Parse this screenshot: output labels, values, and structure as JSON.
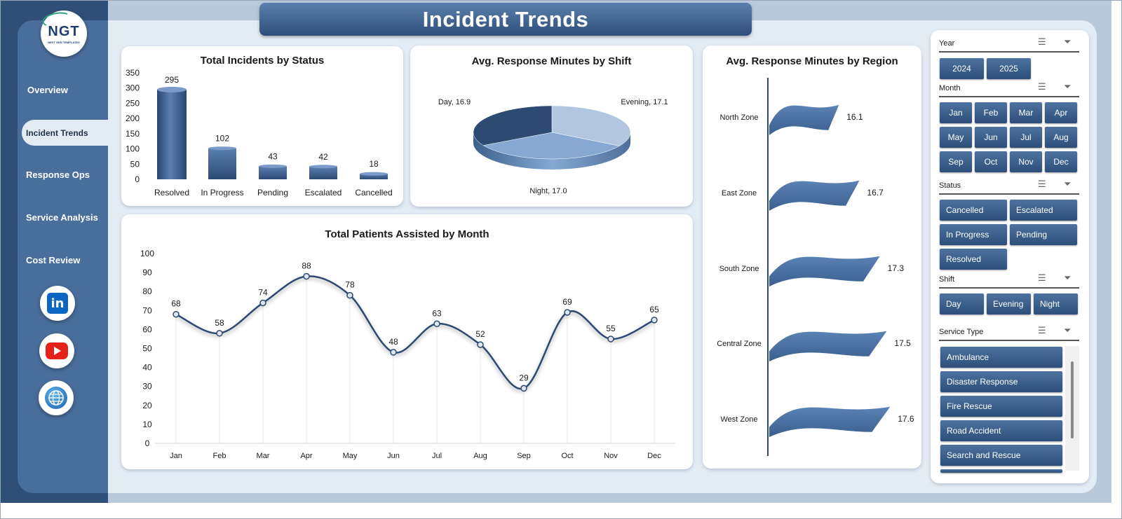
{
  "title": "Incident Trends",
  "logo": {
    "mark": "NGT",
    "sub": "NEXT GEN TEMPLATES"
  },
  "nav": [
    {
      "label": "Overview"
    },
    {
      "label": "Incident Trends",
      "active": true
    },
    {
      "label": "Response Ops"
    },
    {
      "label": "Service Analysis"
    },
    {
      "label": "Cost Review"
    }
  ],
  "social": {
    "linkedin": "in"
  },
  "charts": {
    "status": {
      "title": "Total Incidents by Status"
    },
    "shift": {
      "title": "Avg. Response Minutes by Shift"
    },
    "region": {
      "title": "Avg. Response Minutes by Region"
    },
    "month": {
      "title": "Total Patients Assisted by Month"
    }
  },
  "chart_data": [
    {
      "type": "bar",
      "title": "Total Incidents by Status",
      "categories": [
        "Resolved",
        "In Progress",
        "Pending",
        "Escalated",
        "Cancelled"
      ],
      "values": [
        295,
        102,
        43,
        42,
        18
      ],
      "yticks": [
        0,
        50,
        100,
        150,
        200,
        250,
        300,
        350
      ],
      "ylim": [
        0,
        350
      ],
      "grid": false
    },
    {
      "type": "pie",
      "title": "Avg. Response Minutes by Shift",
      "slices": [
        {
          "label": "Day",
          "value": 16.9,
          "text": "Day, 16.9"
        },
        {
          "label": "Evening",
          "value": 17.1,
          "text": "Evening, 17.1"
        },
        {
          "label": "Night",
          "value": 17.0,
          "text": "Night, 17.0"
        }
      ]
    },
    {
      "type": "bar",
      "orientation": "horizontal",
      "title": "Avg. Response Minutes by Region",
      "categories": [
        "North Zone",
        "East Zone",
        "South Zone",
        "Central Zone",
        "West Zone"
      ],
      "values": [
        16.1,
        16.7,
        17.3,
        17.5,
        17.6
      ],
      "labels": [
        "16.1",
        "16.7",
        "17.3",
        "17.5",
        "17.6"
      ]
    },
    {
      "type": "line",
      "title": "Total Patients Assisted by Month",
      "categories": [
        "Jan",
        "Feb",
        "Mar",
        "Apr",
        "May",
        "Jun",
        "Jul",
        "Aug",
        "Sep",
        "Oct",
        "Nov",
        "Dec"
      ],
      "values": [
        68,
        58,
        74,
        88,
        78,
        48,
        63,
        52,
        29,
        69,
        55,
        65
      ],
      "yticks": [
        0,
        10,
        20,
        30,
        40,
        50,
        60,
        70,
        80,
        90,
        100
      ],
      "ylim": [
        0,
        100
      ],
      "smooth": true
    }
  ],
  "slicers": {
    "year": {
      "header": "Year",
      "items": [
        "2024",
        "2025"
      ]
    },
    "month": {
      "header": "Month",
      "items": [
        "Jan",
        "Feb",
        "Mar",
        "Apr",
        "May",
        "Jun",
        "Jul",
        "Aug",
        "Sep",
        "Oct",
        "Nov",
        "Dec"
      ]
    },
    "status": {
      "header": "Status",
      "items": [
        "Cancelled",
        "Escalated",
        "In Progress",
        "Pending",
        "Resolved"
      ]
    },
    "shift": {
      "header": "Shift",
      "items": [
        "Day",
        "Evening",
        "Night"
      ]
    },
    "service": {
      "header": "Service Type",
      "items": [
        "Ambulance",
        "Disaster Response",
        "Fire Rescue",
        "Road Accident",
        "Search and Rescue"
      ]
    }
  },
  "colors": {
    "accent": "#2e4e7a",
    "sidebar": "#4a6e9c",
    "canvas": "#e3ebf4"
  }
}
